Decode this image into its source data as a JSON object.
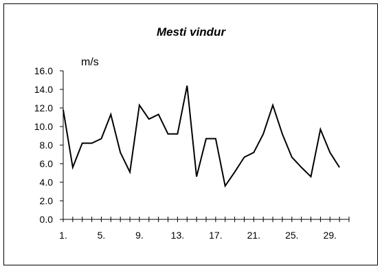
{
  "chart_data": {
    "type": "line",
    "title": "Mesti vindur",
    "ylabel": "m/s",
    "xlabel": "",
    "x": [
      1,
      2,
      3,
      4,
      5,
      6,
      7,
      8,
      9,
      10,
      11,
      12,
      13,
      14,
      15,
      16,
      17,
      18,
      19,
      20,
      21,
      22,
      23,
      24,
      25,
      26,
      27,
      28,
      29,
      30
    ],
    "x_tick_labels": [
      "1.",
      "5.",
      "9.",
      "13.",
      "17.",
      "21.",
      "25.",
      "29."
    ],
    "y_tick_labels": [
      "0.0",
      "2.0",
      "4.0",
      "6.0",
      "8.0",
      "10.0",
      "12.0",
      "14.0",
      "16.0"
    ],
    "ylim": [
      0,
      16
    ],
    "xlim": [
      1,
      31
    ],
    "grid": false,
    "legend": "none",
    "series": [
      {
        "color": "#000000",
        "values": [
          11.8,
          5.6,
          8.2,
          8.2,
          8.7,
          11.3,
          7.2,
          5.1,
          12.3,
          10.8,
          11.3,
          9.2,
          9.2,
          14.4,
          4.6,
          8.7,
          8.7,
          3.6,
          5.1,
          6.7,
          7.2,
          9.2,
          12.3,
          9.2,
          6.7,
          5.6,
          4.6,
          9.7,
          7.2,
          5.6
        ]
      }
    ]
  }
}
